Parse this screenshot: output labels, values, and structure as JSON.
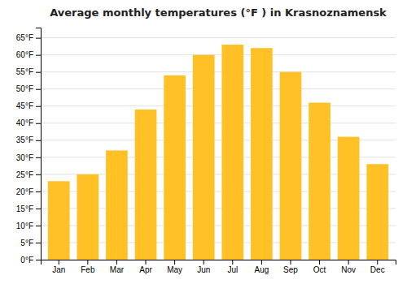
{
  "chart_data": {
    "type": "bar",
    "title": "Average monthly temperatures (°F ) in Krasnoznamensk",
    "categories": [
      "Jan",
      "Feb",
      "Mar",
      "Apr",
      "May",
      "Jun",
      "Jul",
      "Aug",
      "Sep",
      "Oct",
      "Nov",
      "Dec"
    ],
    "values": [
      23,
      25,
      32,
      44,
      54,
      60,
      63,
      62,
      55,
      46,
      36,
      28
    ],
    "color": "#FFC125",
    "ylim": [
      0,
      68
    ],
    "yticks": [
      {
        "value": 0,
        "label": "0°F"
      },
      {
        "value": 5,
        "label": "5°F"
      },
      {
        "value": 10,
        "label": "10°F"
      },
      {
        "value": 15,
        "label": "15°F"
      },
      {
        "value": 20,
        "label": "20°F"
      },
      {
        "value": 25,
        "label": "25°F"
      },
      {
        "value": 30,
        "label": "30°F"
      },
      {
        "value": 35,
        "label": "35°F"
      },
      {
        "value": 40,
        "label": "40°F"
      },
      {
        "value": 45,
        "label": "45°F"
      },
      {
        "value": 50,
        "label": "50°F"
      },
      {
        "value": 55,
        "label": "55°F"
      },
      {
        "value": 60,
        "label": "60°F"
      },
      {
        "value": 65,
        "label": "65°F"
      }
    ],
    "grid": true
  }
}
